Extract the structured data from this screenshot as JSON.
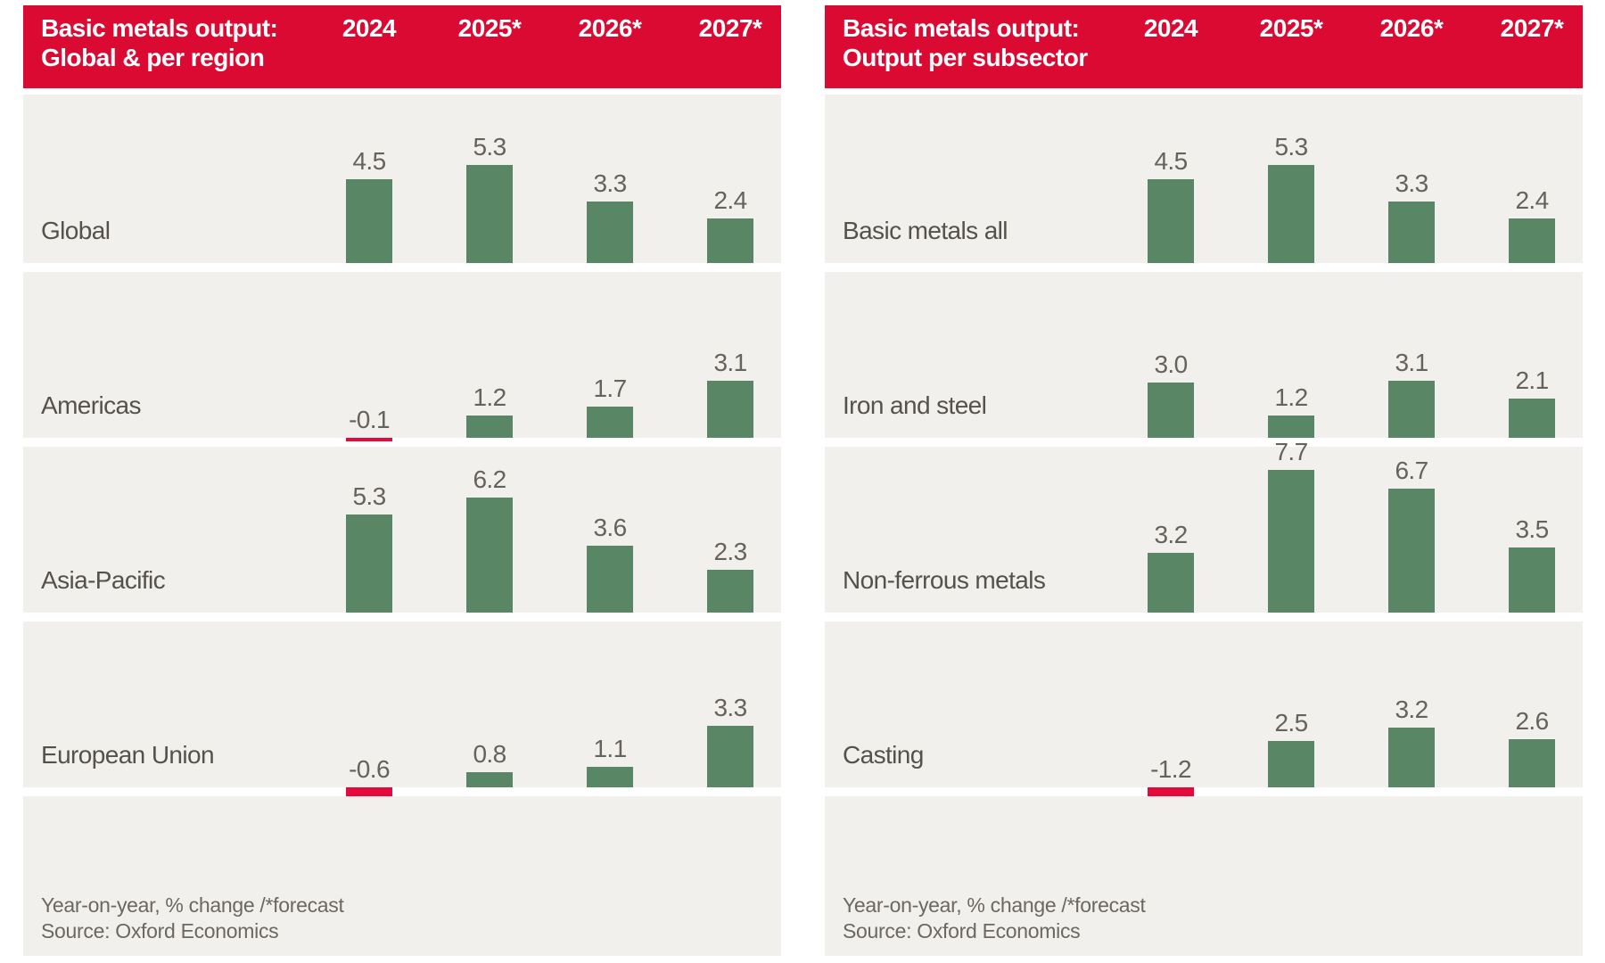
{
  "theme": {
    "header_red": "#DB0A32",
    "bar_green": "#598765",
    "bar_negative_red": "#E40B3C",
    "band_gray": "#F2F0ED",
    "header_text_color": "#FFFFFF",
    "row_label_color": "#55524C",
    "value_label_color": "#66625C",
    "footer_text_color": "#6B6761",
    "page_background": "#FFFFFF"
  },
  "chart_data": [
    {
      "type": "bar",
      "panel": "left",
      "title": "Basic metals output: Global & per region",
      "title_lines": [
        "Basic metals output:",
        "Global & per region"
      ],
      "columns": [
        "2024",
        "2025*",
        "2026*",
        "2027*"
      ],
      "rows": [
        {
          "label": "Global",
          "values": [
            4.5,
            5.3,
            3.3,
            2.4
          ],
          "labels": [
            "4.5",
            "5.3",
            "3.3",
            "2.4"
          ]
        },
        {
          "label": "Americas",
          "values": [
            -0.1,
            1.2,
            1.7,
            3.1
          ],
          "labels": [
            "-0.1",
            "1.2",
            "1.7",
            "3.1"
          ]
        },
        {
          "label": "Asia-Pacific",
          "values": [
            5.3,
            6.2,
            3.6,
            2.3
          ],
          "labels": [
            "5.3",
            "6.2",
            "3.6",
            "2.3"
          ]
        },
        {
          "label": "European Union",
          "values": [
            -0.6,
            0.8,
            1.1,
            3.3
          ],
          "labels": [
            "-0.6",
            "0.8",
            "1.1",
            "3.3"
          ]
        }
      ],
      "footnote": "Year-on-year, % change /*forecast",
      "source": "Source: Oxford Economics",
      "value_axis": {
        "unit": "% change year-on-year",
        "implied_range": [
          -1.5,
          8
        ],
        "gridlines": false
      },
      "legend": "none"
    },
    {
      "type": "bar",
      "panel": "right",
      "title": "Basic metals output: Output per subsector",
      "title_lines": [
        "Basic metals output:",
        "Output per subsector"
      ],
      "columns": [
        "2024",
        "2025*",
        "2026*",
        "2027*"
      ],
      "rows": [
        {
          "label": "Basic metals all",
          "values": [
            4.5,
            5.3,
            3.3,
            2.4
          ],
          "labels": [
            "4.5",
            "5.3",
            "3.3",
            "2.4"
          ]
        },
        {
          "label": "Iron and steel",
          "values": [
            3.0,
            1.2,
            3.1,
            2.1
          ],
          "labels": [
            "3.0",
            "1.2",
            "3.1",
            "2.1"
          ]
        },
        {
          "label": "Non-ferrous metals",
          "values": [
            3.2,
            7.7,
            6.7,
            3.5
          ],
          "labels": [
            "3.2",
            "7.7",
            "6.7",
            "3.5"
          ]
        },
        {
          "label": "Casting",
          "values": [
            -1.2,
            2.5,
            3.2,
            2.6
          ],
          "labels": [
            "-1.2",
            "2.5",
            "3.2",
            "2.6"
          ]
        }
      ],
      "footnote": "Year-on-year, % change /*forecast",
      "source": "Source: Oxford Economics",
      "value_axis": {
        "unit": "% change year-on-year",
        "implied_range": [
          -1.5,
          8
        ],
        "gridlines": false
      },
      "legend": "none"
    }
  ]
}
